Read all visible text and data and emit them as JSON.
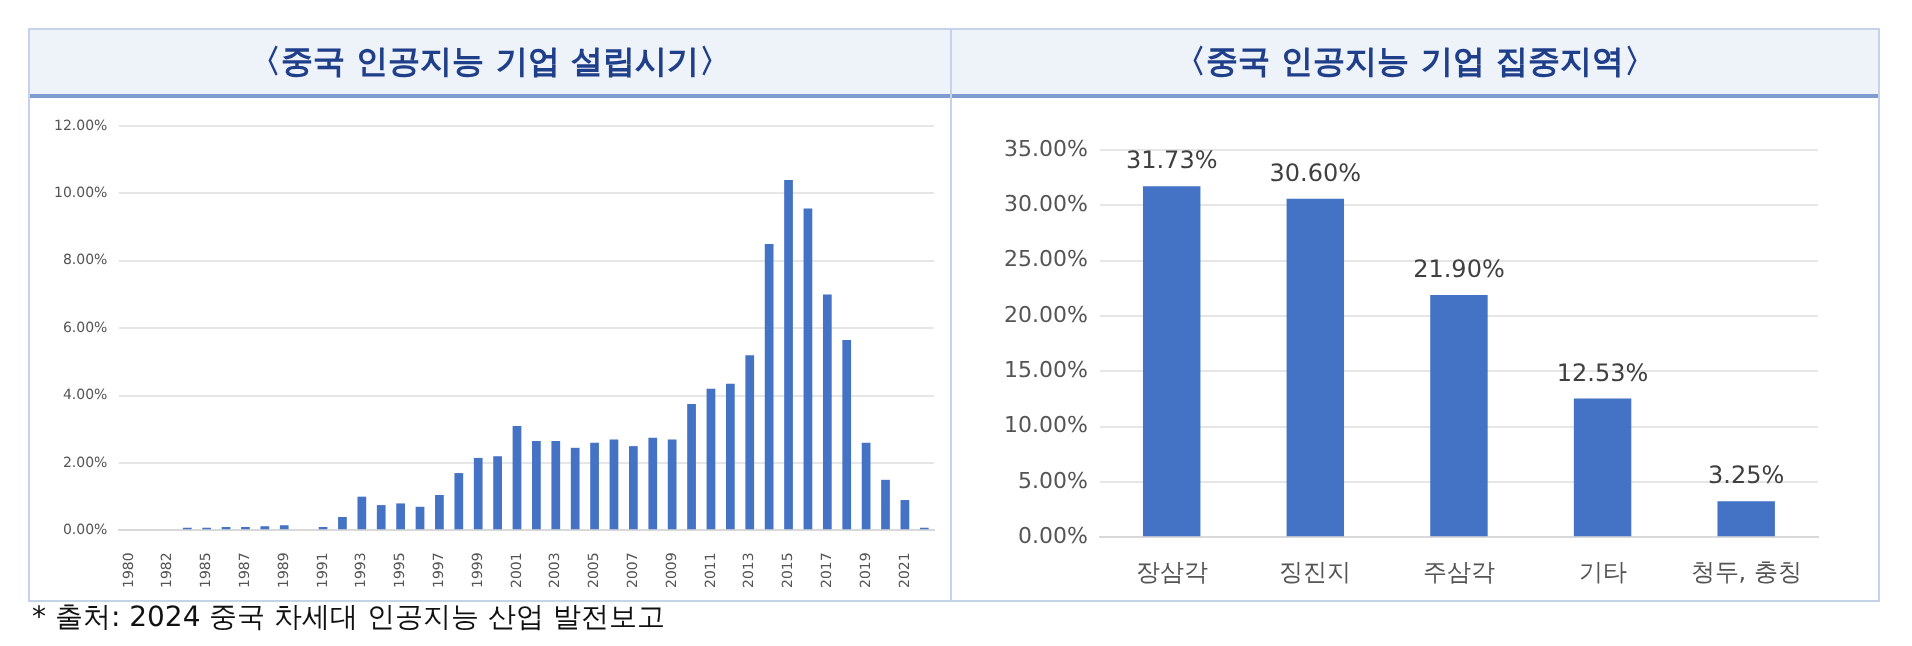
{
  "chart_data": [
    {
      "type": "bar",
      "title": "〈중국 인공지능 기업 설립시기〉",
      "categories": [
        "1980",
        null,
        "1982",
        null,
        "1985",
        null,
        "1987",
        null,
        "1989",
        null,
        "1991",
        null,
        "1993",
        null,
        "1995",
        null,
        "1997",
        null,
        "1999",
        null,
        "2001",
        null,
        "2003",
        null,
        "2005",
        null,
        "2007",
        null,
        "2009",
        null,
        "2011",
        null,
        "2013",
        null,
        "2015",
        null,
        "2017",
        null,
        "2019",
        null,
        "2021",
        null
      ],
      "values": [
        0,
        0,
        0,
        0.08,
        0.08,
        0.1,
        0.1,
        0.12,
        0.15,
        0,
        0.1,
        0.4,
        1.0,
        0.75,
        0.8,
        0.7,
        1.05,
        1.7,
        2.15,
        2.2,
        3.1,
        2.65,
        2.65,
        2.45,
        2.6,
        2.7,
        2.5,
        2.75,
        2.7,
        3.75,
        4.2,
        4.35,
        5.2,
        8.5,
        10.4,
        9.55,
        7.0,
        5.65,
        2.6,
        1.5,
        0.9,
        0.08
      ],
      "color": "#4472c4",
      "ylim": [
        0,
        12
      ],
      "yticks": [
        {
          "value": 0,
          "label": "0.00%"
        },
        {
          "value": 2,
          "label": "2.00%"
        },
        {
          "value": 4,
          "label": "4.00%"
        },
        {
          "value": 6,
          "label": "6.00%"
        },
        {
          "value": 8,
          "label": "8.00%"
        },
        {
          "value": 10,
          "label": "10.00%"
        },
        {
          "value": 12,
          "label": "12.00%"
        }
      ],
      "grid": "y",
      "legend": false,
      "annotations": [
        "* 출처: 2024 중국 차세대 인공지능 산업 발전보고"
      ]
    },
    {
      "type": "bar",
      "title": "〈중국 인공지능 기업 집중지역〉",
      "categories": [
        "장삼각",
        "징진지",
        "주삼각",
        "기타",
        "청두, 충칭"
      ],
      "values": [
        31.73,
        30.6,
        21.9,
        12.53,
        3.25
      ],
      "value_labels": [
        "31.73%",
        "30.60%",
        "21.90%",
        "12.53%",
        "3.25%"
      ],
      "color": "#4472c4",
      "ylim": [
        0,
        35
      ],
      "yticks": [
        {
          "value": 0,
          "label": "0.00%"
        },
        {
          "value": 5,
          "label": "5.00%"
        },
        {
          "value": 10,
          "label": "10.00%"
        },
        {
          "value": 15,
          "label": "15.00%"
        },
        {
          "value": 20,
          "label": "20.00%"
        },
        {
          "value": 25,
          "label": "25.00%"
        },
        {
          "value": 30,
          "label": "30.00%"
        },
        {
          "value": 35,
          "label": "35.00%"
        }
      ],
      "grid": "y",
      "legend": false
    }
  ]
}
